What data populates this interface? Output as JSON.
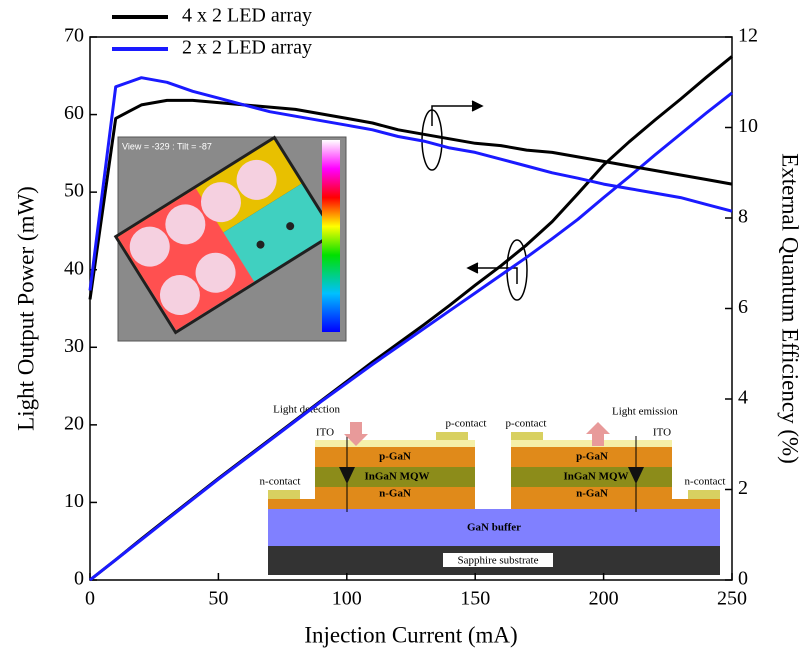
{
  "chart_data": {
    "type": "line",
    "xlabel": "Injection Current (mA)",
    "ylabel": "Light Output Power (mW)",
    "y2label": "External Quantum Efficiency (%)",
    "x": [
      0,
      10,
      20,
      30,
      40,
      50,
      60,
      70,
      80,
      90,
      100,
      110,
      120,
      130,
      140,
      150,
      160,
      170,
      180,
      190,
      200,
      210,
      220,
      230,
      240,
      250
    ],
    "xlim": [
      0,
      250
    ],
    "xticks": [
      0,
      50,
      100,
      150,
      200,
      250
    ],
    "ylim": [
      0,
      70
    ],
    "yticks": [
      0,
      10,
      20,
      30,
      40,
      50,
      60,
      70
    ],
    "y2lim": [
      0,
      12
    ],
    "y2ticks": [
      0,
      2,
      4,
      6,
      8,
      10,
      12
    ],
    "series": [
      {
        "name": "4 x 2 LED array",
        "color": "#000000",
        "values": [
          0,
          2.6,
          5.3,
          7.9,
          10.5,
          13.1,
          15.6,
          18.1,
          20.6,
          23.1,
          25.6,
          28.1,
          30.5,
          32.9,
          35.4,
          38.0,
          40.5,
          43.2,
          46.2,
          49.8,
          53.5,
          56.5,
          59.3,
          62.0,
          64.8,
          67.5
        ]
      },
      {
        "name": "2 x 2 LED array",
        "color": "#1a1aff",
        "values": [
          0,
          2.6,
          5.2,
          7.8,
          10.4,
          13.0,
          15.5,
          18.0,
          20.5,
          23.0,
          25.4,
          27.8,
          30.1,
          32.4,
          34.7,
          37.0,
          39.3,
          41.6,
          44.0,
          46.5,
          49.3,
          52.0,
          54.8,
          57.5,
          60.2,
          62.8
        ]
      },
      {
        "color": "#000000",
        "axis": "y2",
        "values": [
          6.2,
          10.2,
          10.5,
          10.6,
          10.6,
          10.55,
          10.5,
          10.45,
          10.4,
          10.3,
          10.2,
          10.1,
          9.95,
          9.85,
          9.75,
          9.65,
          9.6,
          9.5,
          9.45,
          9.35,
          9.25,
          9.15,
          9.05,
          8.95,
          8.85,
          8.75
        ]
      },
      {
        "color": "#1a1aff",
        "axis": "y2",
        "values": [
          6.4,
          10.9,
          11.1,
          11.0,
          10.8,
          10.65,
          10.5,
          10.35,
          10.25,
          10.15,
          10.05,
          9.95,
          9.8,
          9.7,
          9.55,
          9.45,
          9.3,
          9.15,
          9.0,
          8.88,
          8.75,
          8.65,
          8.55,
          8.45,
          8.3,
          8.15
        ]
      }
    ],
    "insets": {
      "map_caption": "View = -329 : Tilt = -87",
      "device": {
        "light_detection": "Light detection",
        "light_emission": "Light emission",
        "p_contact": [
          "p-contact",
          "p-contact"
        ],
        "ito": [
          "ITO",
          "ITO"
        ],
        "p_gan": [
          "p-GaN",
          "p-GaN"
        ],
        "mqw": [
          "InGaN MQW",
          "InGaN MQW"
        ],
        "n_gan": [
          "n-GaN",
          "n-GaN"
        ],
        "n_contact": [
          "n-contact",
          "n-contact"
        ],
        "buffer": "GaN buffer",
        "substrate": "Sapphire substrate"
      }
    }
  }
}
